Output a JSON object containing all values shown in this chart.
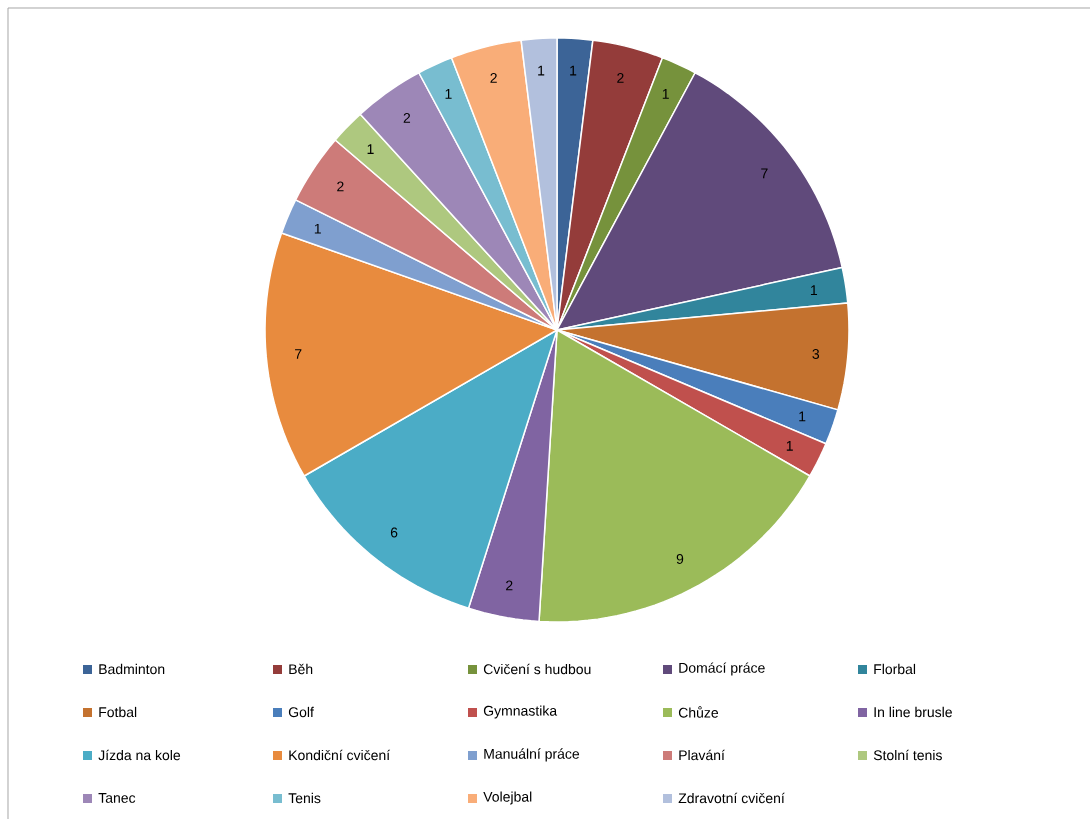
{
  "chart_data": {
    "type": "pie",
    "categories": [
      "Badminton",
      "Běh",
      "Cvičení s hudbou",
      "Domácí práce",
      "Florbal",
      "Fotbal",
      "Golf",
      "Gymnastika",
      "Chůze",
      "In line brusle",
      "Jízda na kole",
      "Kondiční cvičení",
      "Manuální práce",
      "Plavání",
      "Stolní tenis",
      "Tanec",
      "Tenis",
      "Volejbal",
      "Zdravotní cvičení"
    ],
    "values": [
      1,
      2,
      1,
      7,
      1,
      3,
      1,
      1,
      9,
      2,
      6,
      7,
      1,
      2,
      1,
      2,
      1,
      2,
      1
    ],
    "colors": [
      "#3c6497",
      "#943c3a",
      "#76923c",
      "#604a7b",
      "#31859c",
      "#c4722f",
      "#4a7ebb",
      "#c0504d",
      "#9bbb59",
      "#8064a2",
      "#4bacc6",
      "#e88b3e",
      "#7f9fcf",
      "#cd7b79",
      "#aec87f",
      "#9d87b7",
      "#78bdd0",
      "#f9ad78",
      "#b2c0dd"
    ],
    "data_labels": true,
    "legend": "bottom"
  }
}
